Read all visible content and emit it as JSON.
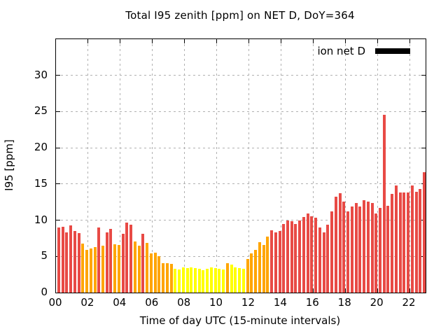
{
  "title": "Total I95 zenith [ppm] on NET D, DoY=364",
  "legend": {
    "label": "ion net D",
    "swatch_color": "#000000",
    "position": "top-right"
  },
  "axes": {
    "y": {
      "label": "I95 [ppm]",
      "tick_labels": [
        "0",
        "5",
        "10",
        "15",
        "20",
        "25",
        "30"
      ],
      "tick_values": [
        0,
        5,
        10,
        15,
        20,
        25,
        30
      ],
      "min": 0,
      "max": 35
    },
    "x": {
      "label": "Time of day UTC (15-minute intervals)",
      "tick_labels": [
        "00",
        "02",
        "04",
        "06",
        "08",
        "10",
        "12",
        "14",
        "16",
        "18",
        "20",
        "22"
      ],
      "tick_hours": [
        0,
        2,
        4,
        6,
        8,
        10,
        12,
        14,
        16,
        18,
        20,
        22
      ],
      "min_hours": 0,
      "max_hours": 23
    }
  },
  "palette": {
    "red": "#e84a45",
    "orange": "#ffa500",
    "yellow": "#ffff00",
    "grid": "#b1b1b1",
    "border": "#000000",
    "legend_swatch": "#000000"
  },
  "color_rule": "value < 4 ppm -> yellow; 4 <= value < 8 -> orange; value >= 8 -> red",
  "chart_data": {
    "type": "bar",
    "title": "Total I95 zenith [ppm] on NET D, DoY=364",
    "xlabel": "Time of day UTC (15-minute intervals)",
    "ylabel": "I95 [ppm]",
    "interval_minutes": 15,
    "xlim_hours": [
      0,
      23
    ],
    "ylim": [
      0,
      35
    ],
    "grid": true,
    "legend_entry": "ion net D",
    "series": [
      {
        "name": "ion net D",
        "times": [
          "00:00",
          "00:15",
          "00:30",
          "00:45",
          "01:00",
          "01:15",
          "01:30",
          "01:45",
          "02:00",
          "02:15",
          "02:30",
          "02:45",
          "03:00",
          "03:15",
          "03:30",
          "03:45",
          "04:00",
          "04:15",
          "04:30",
          "04:45",
          "05:00",
          "05:15",
          "05:30",
          "05:45",
          "06:00",
          "06:15",
          "06:30",
          "06:45",
          "07:00",
          "07:15",
          "07:30",
          "07:45",
          "08:00",
          "08:15",
          "08:30",
          "08:45",
          "09:00",
          "09:15",
          "09:30",
          "09:45",
          "10:00",
          "10:15",
          "10:30",
          "10:45",
          "11:00",
          "11:15",
          "11:30",
          "11:45",
          "12:00",
          "12:15",
          "12:30",
          "12:45",
          "13:00",
          "13:15",
          "13:30",
          "13:45",
          "14:00",
          "14:15",
          "14:30",
          "14:45",
          "15:00",
          "15:15",
          "15:30",
          "15:45",
          "16:00",
          "16:15",
          "16:30",
          "16:45",
          "17:00",
          "17:15",
          "17:30",
          "17:45",
          "18:00",
          "18:15",
          "18:30",
          "18:45",
          "19:00",
          "19:15",
          "19:30",
          "19:45",
          "20:00",
          "20:15",
          "20:30",
          "20:45",
          "21:00",
          "21:15",
          "21:30",
          "21:45",
          "22:00",
          "22:15",
          "22:30",
          "22:45"
        ],
        "values": [
          9.0,
          9.1,
          8.3,
          9.3,
          8.5,
          8.2,
          6.8,
          5.9,
          6.1,
          6.3,
          9.0,
          6.5,
          8.3,
          8.8,
          6.7,
          6.6,
          8.1,
          9.7,
          9.4,
          7.1,
          6.5,
          8.1,
          6.9,
          5.4,
          5.5,
          5.0,
          4.1,
          4.1,
          4.0,
          3.3,
          3.2,
          3.5,
          3.4,
          3.5,
          3.4,
          3.3,
          3.1,
          3.3,
          3.5,
          3.4,
          3.3,
          3.2,
          4.1,
          3.9,
          3.5,
          3.4,
          3.3,
          4.6,
          5.4,
          5.9,
          7.0,
          6.6,
          7.7,
          8.6,
          8.3,
          8.5,
          9.5,
          10.0,
          9.9,
          9.5,
          10.0,
          10.4,
          10.9,
          10.5,
          10.3,
          9.0,
          8.3,
          9.4,
          11.2,
          13.2,
          13.7,
          12.6,
          11.2,
          11.9,
          12.4,
          11.9,
          12.8,
          12.6,
          12.4,
          10.9,
          11.7,
          24.6,
          12.0,
          13.6,
          14.8,
          13.8,
          13.8,
          13.8,
          14.8,
          13.9,
          14.3,
          16.6
        ]
      }
    ]
  }
}
